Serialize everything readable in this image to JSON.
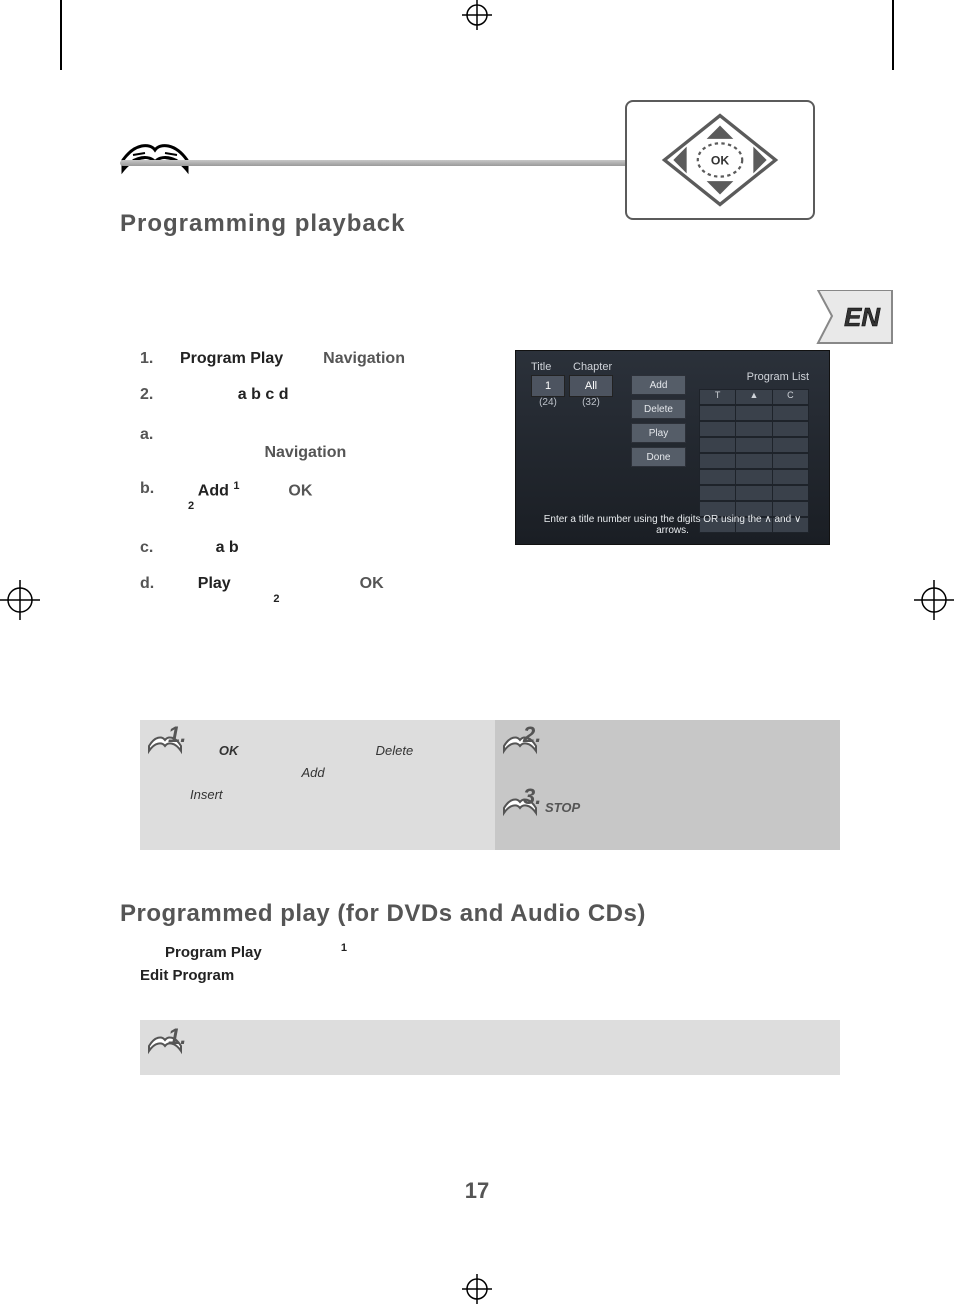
{
  "header": {
    "ok_badge": "OK",
    "en_tab": "EN",
    "section_title": "Programming playback"
  },
  "steps": {
    "s1_num": "1.",
    "s1_b1": "Program Play",
    "s1_nav": "Navigation",
    "s2_num": "2.",
    "s2_txt": "a  b  c  d",
    "sa_num": "a.",
    "sa_nav": "Navigation",
    "sb_num": "b.",
    "sb_b1": "Add",
    "sb_sup1": "1",
    "sb_ok": "OK",
    "sb_sup2": "2",
    "sc_num": "c.",
    "sc_txt": "a        b",
    "sd_num": "d.",
    "sd_b1": "Play",
    "sd_ok": "OK",
    "sd_sup": "2"
  },
  "screenshot": {
    "title_label": "Title",
    "chapter_label": "Chapter",
    "title_val": "1",
    "title_count": "(24)",
    "chapter_val": "All",
    "chapter_count": "(32)",
    "btn_add": "Add",
    "btn_delete": "Delete",
    "btn_play": "Play",
    "btn_done": "Done",
    "program_list": "Program List",
    "col_t": "T",
    "col_c": "C",
    "msg": "Enter a title number using the digits OR using the ∧ and ∨ arrows.",
    "row_count": 8
  },
  "tips": {
    "t1_num": "1.",
    "t1_ok": "OK",
    "t1_delete": "Delete",
    "t1_add": "Add",
    "t1_insert": "Insert",
    "t2_num": "2.",
    "t3_num": "3.",
    "t3_stop": "STOP"
  },
  "section2": {
    "title": "Programmed play (for DVDs and Audio CDs)",
    "b1": "Program Play",
    "sup1": "1",
    "b2": "Edit Program",
    "note_num": "1."
  },
  "page_number": "17",
  "colors": {
    "accent": "#555555",
    "tip_bg_l": "#dddddd",
    "tip_bg_r": "#c7c7c7"
  }
}
